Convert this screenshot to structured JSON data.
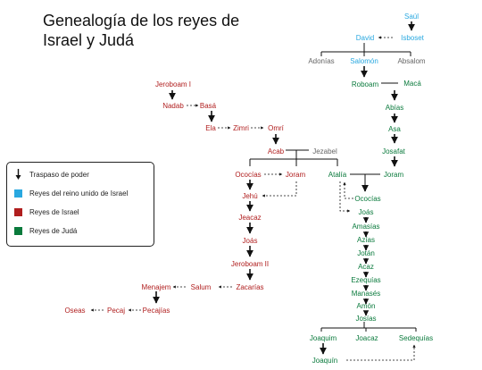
{
  "title": {
    "line1": "Genealogía de los reyes de",
    "line2": "Israel y Judá"
  },
  "colors": {
    "united": "#29a8e0",
    "israel": "#b01e1e",
    "judah": "#0a7a3c",
    "other": "#666666",
    "line": "#111111"
  },
  "legend": {
    "transfer": "Traspaso de poder",
    "united": "Reyes del reino unido de Israel",
    "israel": "Reyes de Israel",
    "judah": "Reyes de Judá"
  },
  "kings": {
    "saul": "Saúl",
    "david": "David",
    "isboset": "Isboset",
    "adonias": "Adonías",
    "salomon": "Salomón",
    "absalom": "Absalom",
    "roboam": "Roboam",
    "maca": "Macá",
    "abias": "Abías",
    "asa": "Asa",
    "josafat": "Josafat",
    "joram_j": "Joram",
    "jeroboam1": "Jeroboam I",
    "nadab": "Nadab",
    "basa": "Basá",
    "ela": "Ela",
    "zimri": "Zimri",
    "omri": "Omrí",
    "acab": "Acab",
    "jezabel": "Jezabel",
    "ococias_i": "Ococías",
    "joram_i": "Joram",
    "atalia": "Atalía",
    "ococias_j": "Ococías",
    "jehu": "Jehú",
    "joas_j": "Joás",
    "amasias": "Amasías",
    "azias": "Azías",
    "jotan": "Jotán",
    "acaz": "Acaz",
    "ezequias": "Ezequías",
    "manases": "Manasés",
    "amon": "Amón",
    "josias": "Josías",
    "joacaz_i": "Jeacaz",
    "joas_i": "Joás",
    "jeroboam2": "Jeroboam II",
    "zacarias": "Zacarías",
    "salum": "Salum",
    "menajem": "Menajem",
    "pecajias": "Pecajías",
    "pecaj": "Pecaj",
    "oseas": "Oseas",
    "joaquim": "Joaquim",
    "joacaz_j": "Joacaz",
    "sedequias": "Sedequías",
    "joaquin": "Joaquín"
  }
}
